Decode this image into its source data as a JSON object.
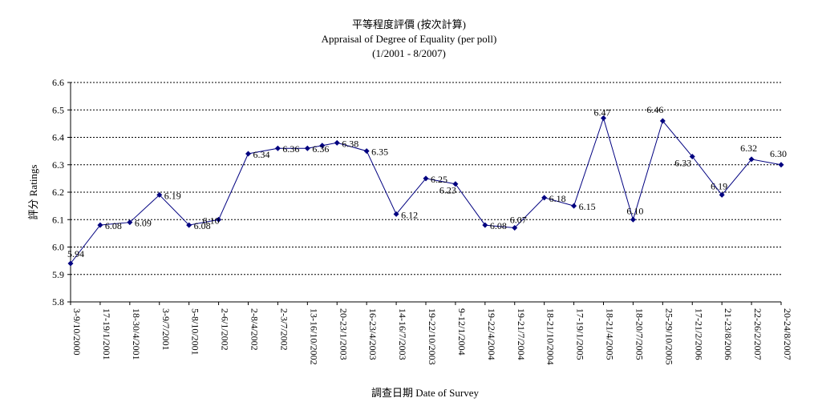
{
  "chart_data": {
    "type": "line",
    "title": "平等程度評價 (按次計算)",
    "subtitle": "Appraisal of Degree of Equality (per poll)",
    "subtitle2": "(1/2001 - 8/2007)",
    "xlabel": "調查日期 Date of Survey",
    "ylabel": "評分 Ratings",
    "ylim": [
      5.8,
      6.6
    ],
    "yticks": [
      "5.8",
      "5.9",
      "6.0",
      "6.1",
      "6.2",
      "6.3",
      "6.4",
      "6.5",
      "6.6"
    ],
    "grid": true,
    "categories": [
      "3-9/10/2000",
      "17-19/1/2001",
      "18-30/4/2001",
      "3-9/7/2001",
      "5-8/10/2001",
      "2-6/1/2002",
      "2-8/4/2002",
      "2-3/7/2002",
      "13-16/10/2002",
      "20-23/1/2003",
      "16-23/4/2003",
      "14-16/7/2003",
      "19-22/10/2003",
      "9-12/1/2004",
      "19-22/4/2004",
      "19-21/7/2004",
      "18-21/10/2004",
      "17-19/1/2005",
      "18-21/4/2005",
      "18-20/7/2005",
      "25-29/10/2005",
      "17-21/2/2006",
      "21-23/8/2006",
      "22-26/2/2007",
      "20-24/8/2007"
    ],
    "points": [
      {
        "x": 0,
        "y": 5.94
      },
      {
        "x": 1,
        "y": 6.08
      },
      {
        "x": 2,
        "y": 6.09
      },
      {
        "x": 3,
        "y": 6.19
      },
      {
        "x": 4,
        "y": 6.08
      },
      {
        "x": 5,
        "y": 6.1
      },
      {
        "x": 6,
        "y": 6.34
      },
      {
        "x": 7,
        "y": 6.36
      },
      {
        "x": 8,
        "y": 6.36
      },
      {
        "x": 8.5,
        "y": 6.37
      },
      {
        "x": 9,
        "y": 6.38
      },
      {
        "x": 10,
        "y": 6.35
      },
      {
        "x": 11,
        "y": 6.12
      },
      {
        "x": 12,
        "y": 6.25
      },
      {
        "x": 13,
        "y": 6.23
      },
      {
        "x": 14,
        "y": 6.08
      },
      {
        "x": 15,
        "y": 6.07
      },
      {
        "x": 16,
        "y": 6.18
      },
      {
        "x": 17,
        "y": 6.15
      },
      {
        "x": 18,
        "y": 6.47
      },
      {
        "x": 19,
        "y": 6.1
      },
      {
        "x": 20,
        "y": 6.46
      },
      {
        "x": 21,
        "y": 6.33
      },
      {
        "x": 22,
        "y": 6.19
      },
      {
        "x": 23,
        "y": 6.32
      },
      {
        "x": 24,
        "y": 6.3
      }
    ],
    "data_labels": [
      {
        "x": 0,
        "y": 5.94,
        "text": "5.94"
      },
      {
        "x": 1,
        "y": 6.08,
        "text": "6.08"
      },
      {
        "x": 2,
        "y": 6.09,
        "text": "6.09"
      },
      {
        "x": 3,
        "y": 6.19,
        "text": "6.19"
      },
      {
        "x": 4,
        "y": 6.08,
        "text": "6.08"
      },
      {
        "x": 5,
        "y": 6.1,
        "text": "6.10"
      },
      {
        "x": 6,
        "y": 6.34,
        "text": "6.34"
      },
      {
        "x": 7,
        "y": 6.36,
        "text": "6.36"
      },
      {
        "x": 8,
        "y": 6.36,
        "text": "6.36"
      },
      {
        "x": 9,
        "y": 6.38,
        "text": "6.38"
      },
      {
        "x": 10,
        "y": 6.35,
        "text": "6.35"
      },
      {
        "x": 11,
        "y": 6.12,
        "text": "6.12"
      },
      {
        "x": 12,
        "y": 6.25,
        "text": "6.25"
      },
      {
        "x": 13,
        "y": 6.23,
        "text": "6.23"
      },
      {
        "x": 14,
        "y": 6.08,
        "text": "6.08"
      },
      {
        "x": 15,
        "y": 6.07,
        "text": "6.07"
      },
      {
        "x": 16,
        "y": 6.18,
        "text": "6.18"
      },
      {
        "x": 17,
        "y": 6.15,
        "text": "6.15"
      },
      {
        "x": 18,
        "y": 6.47,
        "text": "6.47"
      },
      {
        "x": 19,
        "y": 6.1,
        "text": "6.10"
      },
      {
        "x": 20,
        "y": 6.46,
        "text": "6.46"
      },
      {
        "x": 21,
        "y": 6.33,
        "text": "6.33"
      },
      {
        "x": 22,
        "y": 6.19,
        "text": "6.19"
      },
      {
        "x": 23,
        "y": 6.32,
        "text": "6.32"
      },
      {
        "x": 24,
        "y": 6.3,
        "text": "6.30"
      }
    ],
    "line_color": "#000080",
    "marker_color": "#000080"
  }
}
